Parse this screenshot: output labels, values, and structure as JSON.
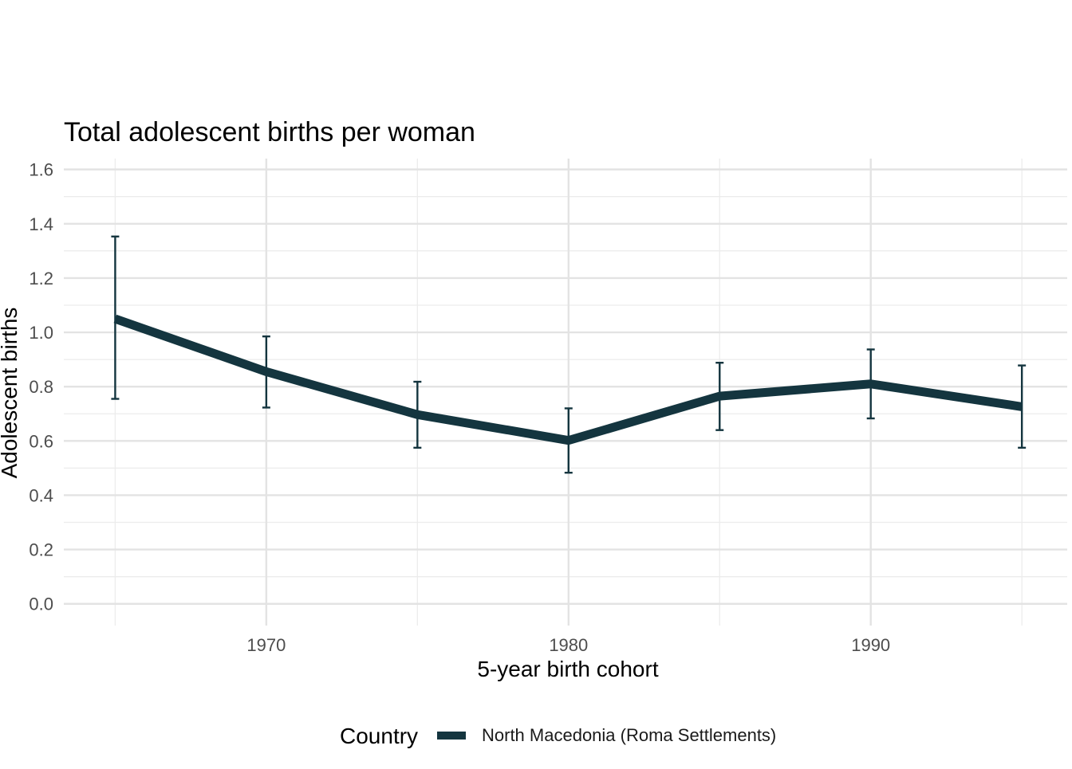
{
  "chart_data": {
    "type": "line",
    "title": "Total adolescent births per woman",
    "xlabel": "5-year birth cohort",
    "ylabel": "Adolescent births",
    "x": [
      1965,
      1970,
      1975,
      1980,
      1985,
      1990,
      1995
    ],
    "xlim": [
      1963.3,
      1996.5
    ],
    "ylim": [
      -0.08,
      1.64
    ],
    "x_ticks": [
      1970,
      1980,
      1990
    ],
    "x_tick_labels": [
      "1970",
      "1980",
      "1990"
    ],
    "y_ticks": [
      0.0,
      0.2,
      0.4,
      0.6,
      0.8,
      1.0,
      1.2,
      1.4,
      1.6
    ],
    "y_tick_labels": [
      "0.0",
      "0.2",
      "0.4",
      "0.6",
      "0.8",
      "1.0",
      "1.2",
      "1.4",
      "1.6"
    ],
    "grid": true,
    "legend": {
      "position": "bottom",
      "title": "Country"
    },
    "series": [
      {
        "name": "North Macedonia (Roma Settlements)",
        "color": "#14353f",
        "values": [
          1.05,
          0.855,
          0.697,
          0.602,
          0.765,
          0.81,
          0.726
        ],
        "lower": [
          0.755,
          0.723,
          0.575,
          0.483,
          0.64,
          0.683,
          0.575
        ],
        "upper": [
          1.353,
          0.985,
          0.818,
          0.72,
          0.888,
          0.937,
          0.878
        ]
      }
    ]
  }
}
